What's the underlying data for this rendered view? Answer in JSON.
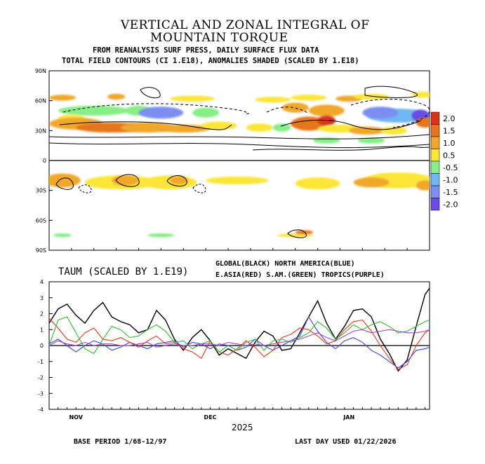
{
  "header": {
    "title_line1": "VERTICAL AND ZONAL INTEGRAL OF",
    "title_line2": "MOUNTAIN TORQUE",
    "subtitle_line1": "FROM REANALYSIS SURF PRESS, DAILY SURFACE FLUX DATA",
    "subtitle_line2": "TOTAL FIELD CONTOURS (CI 1.E18),  ANOMALIES SHADED (SCALED BY 1.E18)"
  },
  "footer": {
    "base_period": "BASE PERIOD  1/68-12/97",
    "last_day": "LAST DAY USED 01/22/2026"
  },
  "chart_data": [
    {
      "type": "heatmap",
      "name": "latitude-time anomaly map",
      "y_tick_labels": [
        "90N",
        "60N",
        "30N",
        "0",
        "30S",
        "60S",
        "90S"
      ],
      "y_ticks_deg": [
        90,
        60,
        30,
        0,
        -30,
        -60,
        -90
      ],
      "x_range_days": [
        0,
        85
      ],
      "colorbar": {
        "labels": [
          "2.0",
          "1.5",
          "1.0",
          "0.5",
          "-0.5",
          "-1.0",
          "-1.5",
          "-2.0"
        ],
        "colors": [
          "#d8341c",
          "#e5761d",
          "#f0a72c",
          "#fbe637",
          "#88ee88",
          "#6fb7f1",
          "#7d8ef2",
          "#6a4be6"
        ]
      },
      "blobs": [
        {
          "lat": 63,
          "t": 3,
          "w": 3,
          "h": 3,
          "v": 1.0
        },
        {
          "lat": 64,
          "t": 15,
          "w": 2,
          "h": 3,
          "v": 1.0
        },
        {
          "lat": 62,
          "t": 32,
          "w": 5,
          "h": 3,
          "v": 0.5
        },
        {
          "lat": 61,
          "t": 50,
          "w": 4,
          "h": 3,
          "v": 0.5
        },
        {
          "lat": 63,
          "t": 58,
          "w": 4,
          "h": 3,
          "v": 0.5
        },
        {
          "lat": 62,
          "t": 67,
          "w": 3,
          "h": 3,
          "v": 1.0
        },
        {
          "lat": 64,
          "t": 72,
          "w": 4,
          "h": 3,
          "v": 0.5
        },
        {
          "lat": 66,
          "t": 84,
          "w": 3,
          "h": 3,
          "v": 0.5
        },
        {
          "lat": 50,
          "t": 10,
          "w": 8,
          "h": 5,
          "v": -0.5
        },
        {
          "lat": 50,
          "t": 20,
          "w": 3,
          "h": 5,
          "v": -0.5
        },
        {
          "lat": 48,
          "t": 25,
          "w": 5,
          "h": 6,
          "v": -1.5
        },
        {
          "lat": 48,
          "t": 35,
          "w": 3,
          "h": 5,
          "v": -0.5
        },
        {
          "lat": 53,
          "t": 55,
          "w": 3,
          "h": 5,
          "v": 1.0
        },
        {
          "lat": 50,
          "t": 62,
          "w": 4,
          "h": 6,
          "v": 1.0
        },
        {
          "lat": 45,
          "t": 78,
          "w": 7,
          "h": 7,
          "v": -1.0
        },
        {
          "lat": 48,
          "t": 74,
          "w": 4,
          "h": 6,
          "v": -1.5
        },
        {
          "lat": 45,
          "t": 83,
          "w": 2,
          "h": 6,
          "v": -2.0
        },
        {
          "lat": 42,
          "t": 5,
          "w": 3,
          "h": 4,
          "v": 0.5
        },
        {
          "lat": 37,
          "t": 6,
          "w": 6,
          "h": 6,
          "v": 1.0
        },
        {
          "lat": 33,
          "t": 14,
          "w": 8,
          "h": 5,
          "v": 1.5
        },
        {
          "lat": 33,
          "t": 22,
          "w": 6,
          "h": 5,
          "v": 1.0
        },
        {
          "lat": 32,
          "t": 30,
          "w": 6,
          "h": 4,
          "v": 1.0
        },
        {
          "lat": 35,
          "t": 38,
          "w": 4,
          "h": 4,
          "v": 0.5
        },
        {
          "lat": 33,
          "t": 47,
          "w": 3,
          "h": 4,
          "v": 0.5
        },
        {
          "lat": 33,
          "t": 52,
          "w": 2,
          "h": 4,
          "v": -0.5
        },
        {
          "lat": 37,
          "t": 58,
          "w": 4,
          "h": 7,
          "v": 1.5
        },
        {
          "lat": 40,
          "t": 62,
          "w": 2,
          "h": 5,
          "v": 2.0
        },
        {
          "lat": 32,
          "t": 65,
          "w": 5,
          "h": 4,
          "v": 0.5
        },
        {
          "lat": 30,
          "t": 71,
          "w": 4,
          "h": 4,
          "v": 1.0
        },
        {
          "lat": 30,
          "t": 77,
          "w": 3,
          "h": 4,
          "v": 0.5
        },
        {
          "lat": 38,
          "t": 84,
          "w": 2,
          "h": 5,
          "v": 1.5
        },
        {
          "lat": 20,
          "t": 62,
          "w": 3,
          "h": 3,
          "v": -0.5
        },
        {
          "lat": 20,
          "t": 72,
          "w": 3,
          "h": 3,
          "v": -0.5
        },
        {
          "lat": -20,
          "t": 3,
          "w": 4,
          "h": 7,
          "v": 1.0
        },
        {
          "lat": -22,
          "t": 16,
          "w": 8,
          "h": 7,
          "v": 0.5
        },
        {
          "lat": -20,
          "t": 17,
          "w": 3,
          "h": 5,
          "v": 1.0
        },
        {
          "lat": -22,
          "t": 27,
          "w": 6,
          "h": 7,
          "v": 0.5
        },
        {
          "lat": -20,
          "t": 29,
          "w": 2,
          "h": 4,
          "v": 1.0
        },
        {
          "lat": -20,
          "t": 42,
          "w": 7,
          "h": 4,
          "v": 0.5
        },
        {
          "lat": -23,
          "t": 60,
          "w": 5,
          "h": 6,
          "v": 0.5
        },
        {
          "lat": -20,
          "t": 78,
          "w": 8,
          "h": 8,
          "v": 0.5
        },
        {
          "lat": -22,
          "t": 72,
          "w": 4,
          "h": 5,
          "v": 1.0
        },
        {
          "lat": -25,
          "t": 84,
          "w": 2,
          "h": 5,
          "v": 1.0
        },
        {
          "lat": -75,
          "t": 3,
          "w": 2,
          "h": 2,
          "v": -0.5
        },
        {
          "lat": -75,
          "t": 25,
          "w": 3,
          "h": 2,
          "v": -0.5
        },
        {
          "lat": -75,
          "t": 55,
          "w": 4,
          "h": 2,
          "v": 0.5
        },
        {
          "lat": -72,
          "t": 57,
          "w": 2,
          "h": 2,
          "v": 1.5
        }
      ]
    },
    {
      "type": "line",
      "title": "TAUM (SCALED BY 1.E19)",
      "legend_line1": "GLOBAL(BLACK)      NORTH AMERICA(BLUE)",
      "legend_line2": "E.ASIA(RED) S.AM.(GREEN) TROPICS(PURPLE)",
      "ylim": [
        -4,
        4
      ],
      "y_ticks": [
        4,
        3,
        2,
        1,
        0,
        -1,
        -2,
        -3,
        -4
      ],
      "x_tick_labels": [
        {
          "label": "NOV",
          "day": 6
        },
        {
          "label": "DEC",
          "day": 36
        },
        {
          "label": "JAN",
          "day": 67
        }
      ],
      "year_label": "2025",
      "x_range_days": [
        0,
        85
      ],
      "x_days": [
        0,
        2,
        4,
        6,
        8,
        10,
        12,
        14,
        16,
        18,
        20,
        22,
        24,
        26,
        28,
        30,
        32,
        34,
        36,
        38,
        40,
        42,
        44,
        46,
        48,
        50,
        52,
        54,
        56,
        58,
        60,
        62,
        64,
        66,
        68,
        70,
        72,
        74,
        76,
        78,
        80,
        82,
        84,
        85
      ],
      "series": [
        {
          "color": "#000000",
          "values": [
            1.4,
            2.3,
            2.6,
            1.9,
            1.4,
            2.2,
            2.7,
            1.8,
            1.5,
            1.3,
            0.8,
            1.0,
            2.2,
            1.6,
            0.4,
            -0.3,
            0.5,
            1.0,
            0.3,
            -0.6,
            -0.2,
            -0.5,
            -0.8,
            0.2,
            0.9,
            0.6,
            -0.3,
            -0.2,
            0.8,
            1.8,
            2.8,
            1.4,
            0.4,
            1.2,
            2.2,
            2.3,
            1.8,
            0.4,
            -0.5,
            -1.6,
            -0.9,
            1.2,
            3.2,
            3.6
          ]
        },
        {
          "color": "#3344ee",
          "values": [
            0.1,
            0.4,
            0.0,
            -0.4,
            0.0,
            0.3,
            0.1,
            -0.3,
            -0.1,
            0.2,
            0.0,
            -0.2,
            0.1,
            0.2,
            0.3,
            -0.1,
            0.2,
            0.1,
            -0.2,
            0.1,
            0.0,
            -0.3,
            -0.1,
            0.4,
            0.0,
            -0.3,
            0.0,
            0.3,
            0.6,
            1.8,
            0.9,
            0.2,
            -0.2,
            0.3,
            0.5,
            0.2,
            -0.3,
            -0.6,
            -1.0,
            -1.4,
            -1.0,
            -0.3,
            -0.2,
            -0.1
          ]
        },
        {
          "color": "#e03a1e",
          "values": [
            1.7,
            1.1,
            0.4,
            0.2,
            0.8,
            1.1,
            0.4,
            0.3,
            0.5,
            0.2,
            -0.1,
            0.3,
            0.6,
            0.1,
            0.2,
            -0.2,
            -0.4,
            -0.8,
            0.3,
            -0.4,
            -0.6,
            -0.2,
            0.3,
            -0.1,
            -0.7,
            -0.3,
            0.5,
            0.7,
            1.1,
            1.0,
            0.6,
            0.1,
            0.3,
            1.0,
            1.5,
            1.6,
            0.9,
            0.0,
            -0.8,
            -1.5,
            -1.2,
            0.0,
            0.8,
            1.0
          ]
        },
        {
          "color": "#33bb33",
          "values": [
            0.0,
            1.6,
            1.8,
            0.8,
            -0.2,
            -0.5,
            0.4,
            1.2,
            1.0,
            0.5,
            0.6,
            1.0,
            1.3,
            0.9,
            0.2,
            0.3,
            -0.2,
            0.1,
            0.3,
            -0.4,
            0.0,
            -0.3,
            0.2,
            0.4,
            -0.3,
            0.3,
            0.4,
            0.2,
            0.5,
            0.8,
            1.5,
            1.1,
            0.4,
            0.8,
            1.3,
            1.0,
            1.3,
            1.5,
            1.2,
            0.8,
            0.9,
            1.2,
            1.5,
            1.6
          ]
        },
        {
          "color": "#aa44cc",
          "values": [
            0.0,
            0.3,
            0.1,
            0.0,
            0.2,
            0.0,
            0.1,
            0.1,
            0.0,
            0.0,
            0.1,
            0.2,
            -0.1,
            0.0,
            0.1,
            0.0,
            0.0,
            0.1,
            0.1,
            0.0,
            0.2,
            0.1,
            0.0,
            0.1,
            0.0,
            0.1,
            0.2,
            0.3,
            0.4,
            0.6,
            0.8,
            0.5,
            0.3,
            0.6,
            0.9,
            1.0,
            0.8,
            0.9,
            1.0,
            0.9,
            0.8,
            0.8,
            0.9,
            1.0
          ]
        }
      ]
    }
  ]
}
